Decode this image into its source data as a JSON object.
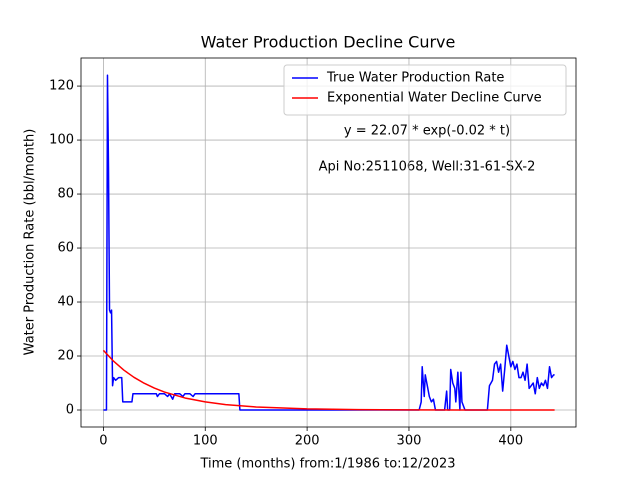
{
  "chart_data": {
    "type": "line",
    "title": "Water Production Decline Curve",
    "x_label": "Time (months) from:1/1986 to:12/2023",
    "y_label": "Water Production Rate (bbl/month)",
    "annotations": [
      "y = 22.07 * exp(-0.02 * t)",
      "Api No:2511068, Well:31-61-SX-2"
    ],
    "xlim": [
      -22,
      464
    ],
    "ylim": [
      -6.3,
      130.4
    ],
    "xticks": [
      0,
      100,
      200,
      300,
      400
    ],
    "yticks": [
      0,
      20,
      40,
      60,
      80,
      100,
      120
    ],
    "grid": true,
    "legend": "upper right",
    "series": [
      {
        "name": "True Water Production Rate",
        "color": "#0000ff",
        "x": [
          0,
          3,
          4,
          5,
          6,
          7,
          8,
          9,
          10,
          12,
          15,
          18,
          19,
          22,
          28,
          29,
          40,
          52,
          53,
          55,
          60,
          63,
          65,
          68,
          70,
          75,
          78,
          80,
          85,
          88,
          90,
          130,
          133,
          134,
          200,
          300,
          310,
          312,
          313,
          315,
          316,
          318,
          320,
          322,
          324,
          326,
          335,
          337,
          338,
          340,
          341,
          343,
          345,
          346,
          348,
          350,
          351,
          352,
          355,
          375,
          377,
          379,
          382,
          384,
          386,
          388,
          390,
          392,
          394,
          396,
          398,
          400,
          402,
          404,
          406,
          408,
          410,
          412,
          414,
          416,
          418,
          420,
          422,
          424,
          426,
          428,
          430,
          432,
          434,
          436,
          438,
          440,
          442,
          443
        ],
        "values": [
          0,
          0,
          124,
          90,
          37,
          36,
          37,
          9,
          12,
          11,
          12,
          12,
          3,
          3,
          3,
          6,
          6,
          6,
          5,
          6,
          6,
          5,
          6,
          4,
          6,
          6,
          5,
          6,
          6,
          5,
          6,
          6,
          6,
          0,
          0,
          0,
          0,
          3,
          16,
          5,
          13,
          9,
          5,
          3,
          4,
          0,
          0,
          7,
          0,
          0,
          15,
          10,
          8,
          3,
          14,
          0,
          14,
          3,
          0,
          0,
          0,
          9,
          11,
          17,
          18,
          14,
          17,
          7,
          15,
          24,
          20,
          16,
          18,
          15,
          17,
          12,
          12,
          14,
          11,
          17,
          8,
          9,
          10,
          6,
          12,
          8,
          10,
          9,
          11,
          8,
          16,
          12,
          13,
          13
        ]
      },
      {
        "name": "Exponential Water Decline Curve",
        "color": "#ff0000",
        "x": [
          0,
          10,
          20,
          30,
          40,
          50,
          60,
          80,
          100,
          120,
          150,
          200,
          250,
          300,
          350,
          400,
          443
        ],
        "values": [
          22.07,
          18.07,
          14.79,
          12.11,
          9.92,
          8.12,
          6.65,
          4.46,
          2.99,
          2.0,
          1.1,
          0.4,
          0.15,
          0.05,
          0.02,
          0.01,
          0.003
        ]
      }
    ]
  }
}
